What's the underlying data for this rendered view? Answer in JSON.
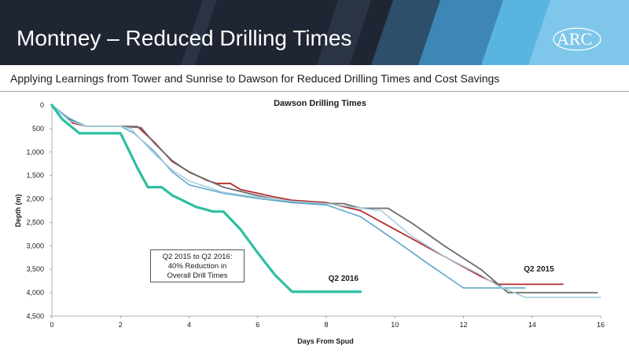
{
  "slide": {
    "title": "Montney – Reduced Drilling Times",
    "subtitle": "Applying Learnings from Tower and Sunrise to Dawson for Reduced Drilling Times and Cost Savings",
    "logo_text": "ARC"
  },
  "colors": {
    "header_bg": "#1f2532",
    "accent_light_blue": "#5ab4e0",
    "q2_2016": "#2dbfa0",
    "q2_2015": "#b22a2a",
    "dark_gray": "#6b6b6b",
    "steel_blue": "#5ea8c8",
    "light_blue": "#a8cde0"
  },
  "annotation": {
    "lines": [
      "Q2 2015 to Q2 2016:",
      "40% Reduction in",
      "Overall Drill Times"
    ]
  },
  "chart_data": {
    "type": "line",
    "title": "Dawson Drilling Times",
    "xlabel": "Days From Spud",
    "ylabel": "Depth (m)",
    "xlim": [
      0,
      16
    ],
    "ylim": [
      0,
      4500
    ],
    "y_inverted": true,
    "x_ticks": [
      0,
      2,
      4,
      6,
      8,
      10,
      12,
      14,
      16
    ],
    "x_tick_labels": [
      "0",
      "2",
      "4",
      "6",
      "8",
      "10",
      "12",
      "14",
      "16"
    ],
    "y_ticks": [
      0,
      500,
      1000,
      1500,
      2000,
      2500,
      3000,
      3500,
      4000,
      4500
    ],
    "y_tick_labels": [
      "0",
      "500",
      "1,000",
      "1,500",
      "2,000",
      "2,500",
      "3,000",
      "3,500",
      "4,000",
      "4,500"
    ],
    "grid": false,
    "series": [
      {
        "name": "Q2 2015",
        "color": "#b22a2a",
        "width": 1.8,
        "x": [
          0,
          0.6,
          1,
          2,
          2.5,
          3,
          3.5,
          4,
          4.5,
          4.8,
          5.2,
          5.5,
          6,
          6.5,
          7,
          8,
          9,
          10,
          11,
          12,
          12.5,
          13,
          14,
          14.9
        ],
        "y": [
          0,
          380,
          450,
          450,
          460,
          800,
          1200,
          1420,
          1600,
          1670,
          1670,
          1800,
          1880,
          1960,
          2030,
          2080,
          2250,
          2650,
          3050,
          3450,
          3650,
          3820,
          3820,
          3820
        ]
      },
      {
        "name": "",
        "color": "#6b6b6b",
        "width": 1.8,
        "x": [
          0,
          0.5,
          1,
          2,
          2.6,
          3,
          3.5,
          4,
          5,
          6,
          7,
          8,
          8.5,
          9,
          9.8,
          10.5,
          11.5,
          12.5,
          13.3,
          14,
          15,
          15.9
        ],
        "y": [
          0,
          300,
          450,
          450,
          480,
          820,
          1180,
          1430,
          1750,
          1930,
          2080,
          2100,
          2100,
          2200,
          2200,
          2520,
          3030,
          3500,
          4000,
          4000,
          4000,
          4000
        ]
      },
      {
        "name": "",
        "color": "#5ea8c8",
        "width": 1.6,
        "x": [
          0,
          0.5,
          1,
          2,
          2.4,
          3,
          3.5,
          4,
          5,
          6,
          7,
          8,
          9,
          10,
          11,
          12,
          13,
          13.8
        ],
        "y": [
          0,
          280,
          450,
          450,
          600,
          1000,
          1420,
          1700,
          1880,
          1990,
          2080,
          2130,
          2380,
          2880,
          3400,
          3900,
          3900,
          3900
        ]
      },
      {
        "name": "",
        "color": "#a8cde0",
        "width": 1.6,
        "x": [
          0,
          0.5,
          1,
          2,
          2.3,
          3,
          3.5,
          4,
          5,
          6,
          7,
          8,
          9,
          9.6,
          10.5,
          11.5,
          12.5,
          13,
          13.8,
          15,
          16
        ],
        "y": [
          0,
          330,
          450,
          450,
          500,
          1050,
          1380,
          1620,
          1860,
          1960,
          2050,
          2100,
          2200,
          2250,
          2800,
          3250,
          3620,
          3850,
          4100,
          4100,
          4100
        ]
      },
      {
        "name": "Q2 2016",
        "color": "#2dbfa0",
        "width": 3.2,
        "x": [
          0,
          0.3,
          0.8,
          1.2,
          2,
          2.5,
          2.8,
          3.2,
          3.5,
          4.2,
          4.7,
          5,
          5.5,
          6,
          6.5,
          7,
          8,
          9
        ],
        "y": [
          0,
          300,
          600,
          600,
          600,
          1350,
          1750,
          1750,
          1920,
          2170,
          2270,
          2270,
          2650,
          3150,
          3620,
          3980,
          3980,
          3980
        ]
      }
    ],
    "series_labels": [
      {
        "text": "Q2 2016",
        "series": "Q2 2016",
        "x": 8.5,
        "y": 3750
      },
      {
        "text": "Q2 2015",
        "series": "Q2 2015",
        "x": 14.2,
        "y": 3550
      }
    ]
  }
}
